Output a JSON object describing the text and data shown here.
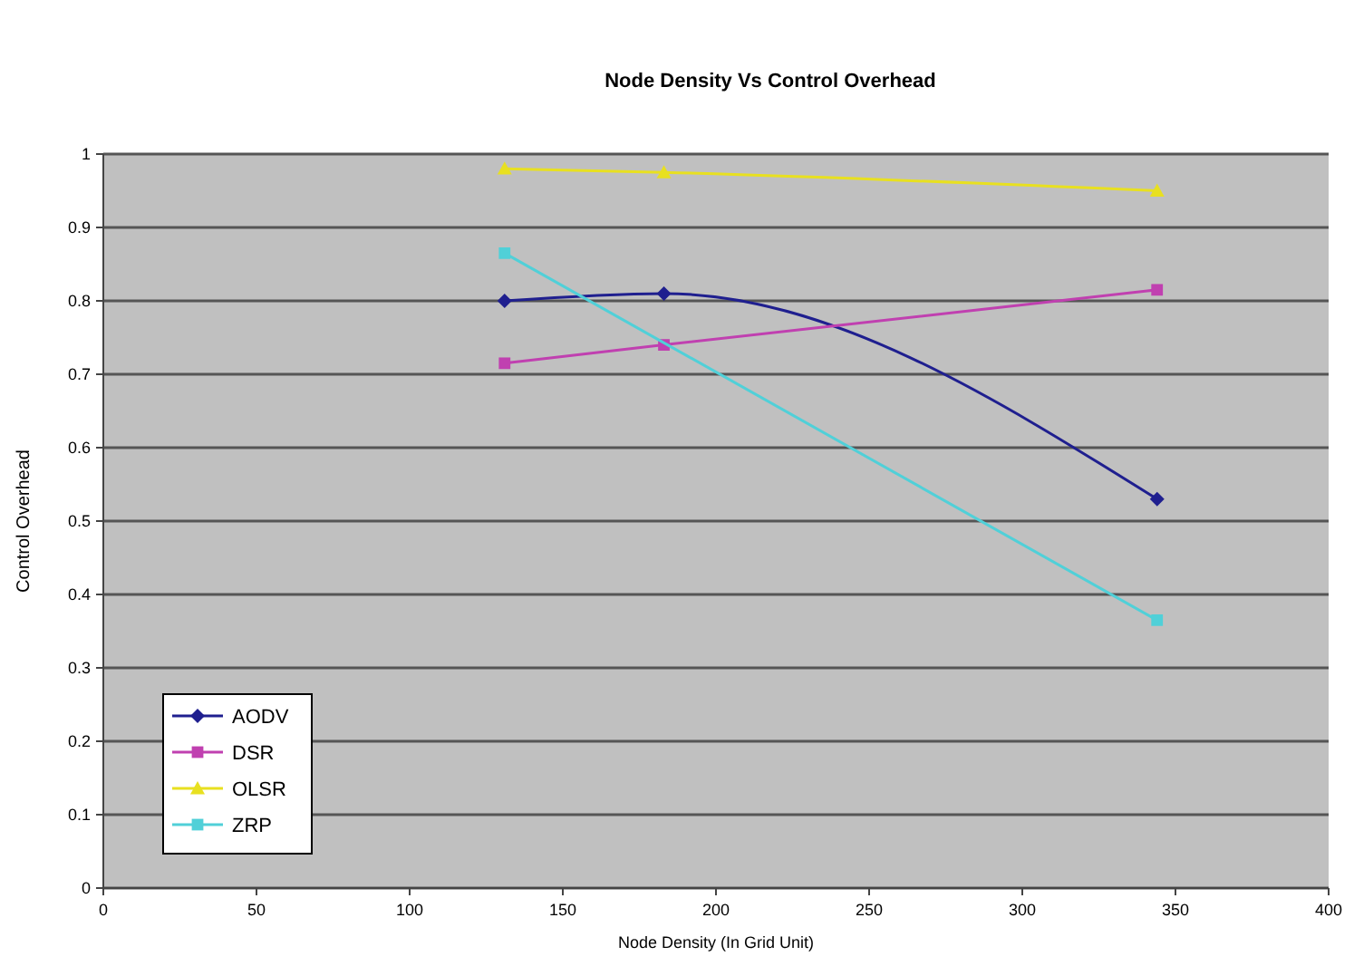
{
  "chart_data": {
    "type": "line",
    "title": "Node Density Vs Control Overhead",
    "xlabel": "Node Density (In Grid Unit)",
    "ylabel": "Control Overhead",
    "x": [
      131,
      183,
      344
    ],
    "series": [
      {
        "name": "AODV",
        "color": "#1f1f8f",
        "values": [
          0.8,
          0.81,
          0.53
        ],
        "marker": "diamond"
      },
      {
        "name": "DSR",
        "color": "#c040b0",
        "values": [
          0.715,
          0.74,
          0.815
        ],
        "marker": "square"
      },
      {
        "name": "OLSR",
        "color": "#e8e020",
        "values": [
          0.98,
          0.975,
          0.95
        ],
        "marker": "triangle"
      },
      {
        "name": "ZRP",
        "color": "#50d0d8",
        "values": [
          0.865,
          null,
          0.365
        ],
        "marker": "square"
      }
    ],
    "xlim": [
      0,
      400
    ],
    "xticks": [
      0,
      50,
      100,
      150,
      200,
      250,
      300,
      350,
      400
    ],
    "ylim": [
      0,
      1
    ],
    "yticks": [
      0,
      0.1,
      0.2,
      0.3,
      0.4,
      0.5,
      0.6,
      0.7,
      0.8,
      0.9,
      1
    ],
    "grid": "y",
    "legend": "bottom left"
  }
}
